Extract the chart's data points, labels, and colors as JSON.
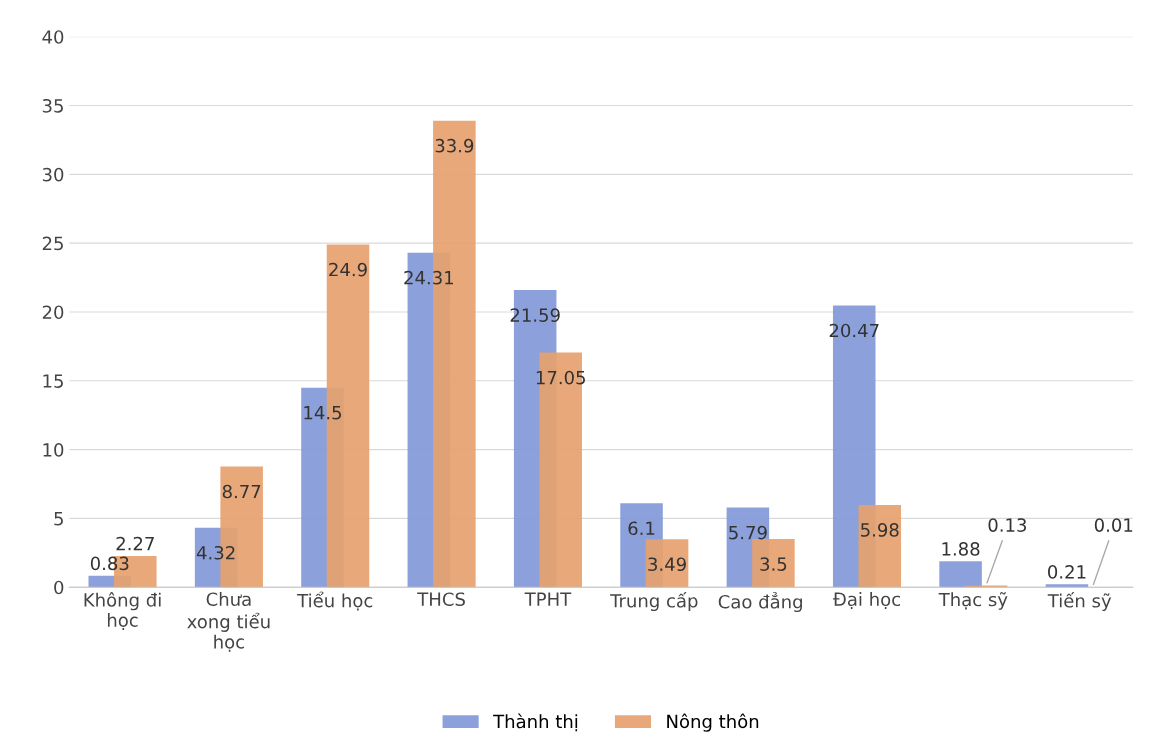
{
  "chart_data": {
    "type": "bar",
    "categories": [
      "Không đi\nhọc",
      "Chưa\nxong tiểu\nhọc",
      "Tiểu học",
      "THCS",
      "TPHT",
      "Trung cấp",
      "Cao đẳng",
      "Đại học",
      "Thạc sỹ",
      "Tiến sỹ"
    ],
    "series": [
      {
        "name": "Thành thị",
        "color": "#8299d8",
        "values": [
          0.83,
          4.32,
          14.5,
          24.31,
          21.59,
          6.1,
          5.79,
          20.47,
          1.88,
          0.21
        ]
      },
      {
        "name": "Nông thôn",
        "color": "#e6a16e",
        "values": [
          2.27,
          8.77,
          24.9,
          33.9,
          17.05,
          3.49,
          3.5,
          5.98,
          0.13,
          0.01
        ]
      }
    ],
    "ylim": [
      0,
      40
    ],
    "yticks": [
      0,
      5,
      10,
      15,
      20,
      25,
      30,
      35,
      40
    ],
    "grid": "y",
    "legend": "bottom",
    "data_labels": true
  }
}
